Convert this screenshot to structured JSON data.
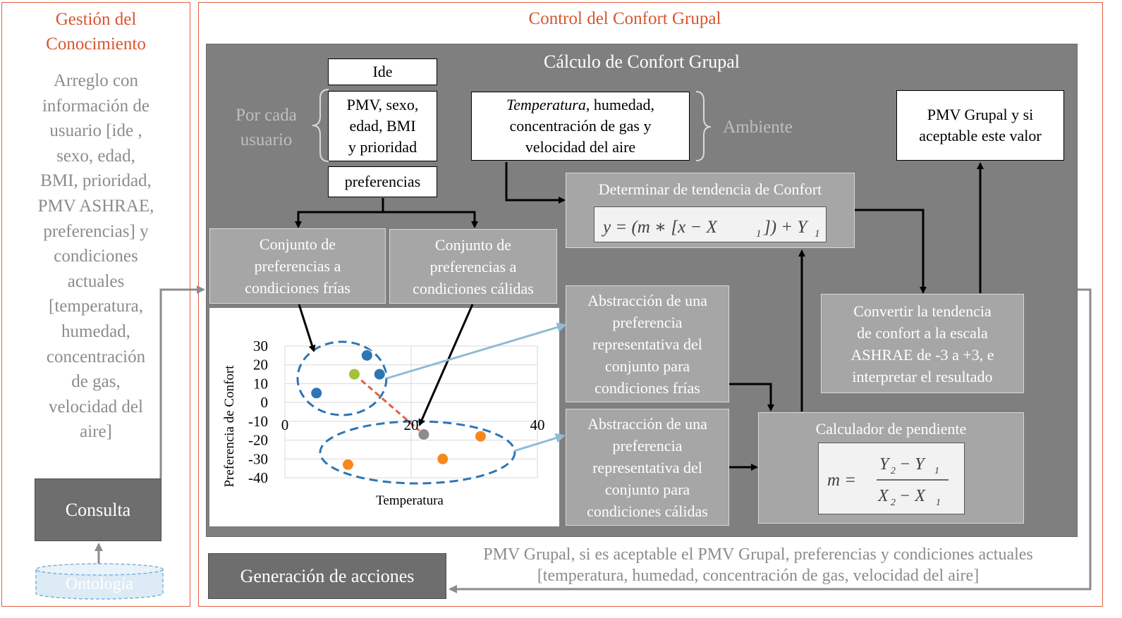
{
  "left_panel": {
    "title_line1": "Gestión del",
    "title_line2": "Conocimiento",
    "description_lines": [
      "Arreglo con",
      "información de",
      "usuario [ide ,",
      "sexo, edad,",
      "BMI, prioridad,",
      "PMV ASHRAE,",
      "preferencias] y",
      "condiciones",
      "actuales",
      "[temperatura,",
      "humedad,",
      "concentración",
      "de gas,",
      "velocidad del",
      "aire]"
    ],
    "consulta": "Consulta",
    "ontologia": "Ontología"
  },
  "right_panel": {
    "title": "Control del Confort Grupal",
    "calc_title": "Cálculo de Confort Grupal",
    "ide": "Ide",
    "user_data_lines": [
      "PMV, sexo,",
      "edad, BMI",
      "y prioridad"
    ],
    "preferencias": "preferencias",
    "por_cada_line1": "Por cada",
    "por_cada_line2": "usuario",
    "env_italic": "Temperatura",
    "env_line1_rest": ", humedad,",
    "env_line2": "concentración de gas y",
    "env_line3": "velocidad del aire",
    "ambiente": "Ambiente",
    "pmv_result_line1": "PMV Grupal y si",
    "pmv_result_line2": "aceptable este valor",
    "tendencia_title": "Determinar de tendencia de Confort",
    "cold_set_lines": [
      "Conjunto de",
      "preferencias a",
      "condiciones frías"
    ],
    "warm_set_lines": [
      "Conjunto de",
      "preferencias a",
      "condiciones cálidas"
    ],
    "abs_cold_lines": [
      "Abstracción de una",
      "preferencia",
      "representativa del",
      "conjunto para",
      "condiciones frías"
    ],
    "abs_warm_lines": [
      "Abstracción de una",
      "preferencia",
      "representativa del",
      "conjunto para",
      "condiciones cálidas"
    ],
    "convert_lines": [
      "Convertir la tendencia",
      "de confort a la escala",
      "ASHRAE de -3 a +3, e",
      "interpretar el resultado"
    ],
    "pendiente_title": "Calculador de pendiente",
    "generacion": "Generación de acciones",
    "bottom_line1": "PMV Grupal, si es aceptable el PMV Grupal, preferencias y condiciones actuales",
    "bottom_line2": "[temperatura, humedad, concentración de gas, velocidad del aire]"
  },
  "chart_data": {
    "type": "scatter",
    "xlabel": "Temperatura",
    "ylabel": "Preferencia de Confort",
    "xlim": [
      0,
      40
    ],
    "ylim": [
      -40,
      30
    ],
    "x_ticks": [
      "0",
      "20",
      "40"
    ],
    "y_ticks": [
      "30",
      "20",
      "10",
      "0",
      "-10",
      "-20",
      "-30",
      "-40"
    ],
    "grid": true,
    "points": [
      {
        "x": 5,
        "y": 5,
        "color": "#2e75b6"
      },
      {
        "x": 13,
        "y": 25,
        "color": "#2e75b6"
      },
      {
        "x": 15,
        "y": 15,
        "color": "#2e75b6"
      },
      {
        "x": 11,
        "y": 15,
        "color": "#a5c13a"
      },
      {
        "x": 22,
        "y": -17,
        "color": "#8c8c8c"
      },
      {
        "x": 10,
        "y": -33,
        "color": "#f5891f"
      },
      {
        "x": 25,
        "y": -30,
        "color": "#f5891f"
      },
      {
        "x": 31,
        "y": -18,
        "color": "#f5891f"
      }
    ],
    "trend_line": {
      "from": [
        11,
        15
      ],
      "to": [
        22,
        -17
      ],
      "color": "#e2603f"
    }
  },
  "colors": {
    "accent": "#d9552f",
    "frame": "#e2603f",
    "dark_panel": "#7f7f7f",
    "light_box": "#a6a6a6",
    "blue_arrow": "#8fbcd4",
    "cluster": "#2e75b6"
  }
}
